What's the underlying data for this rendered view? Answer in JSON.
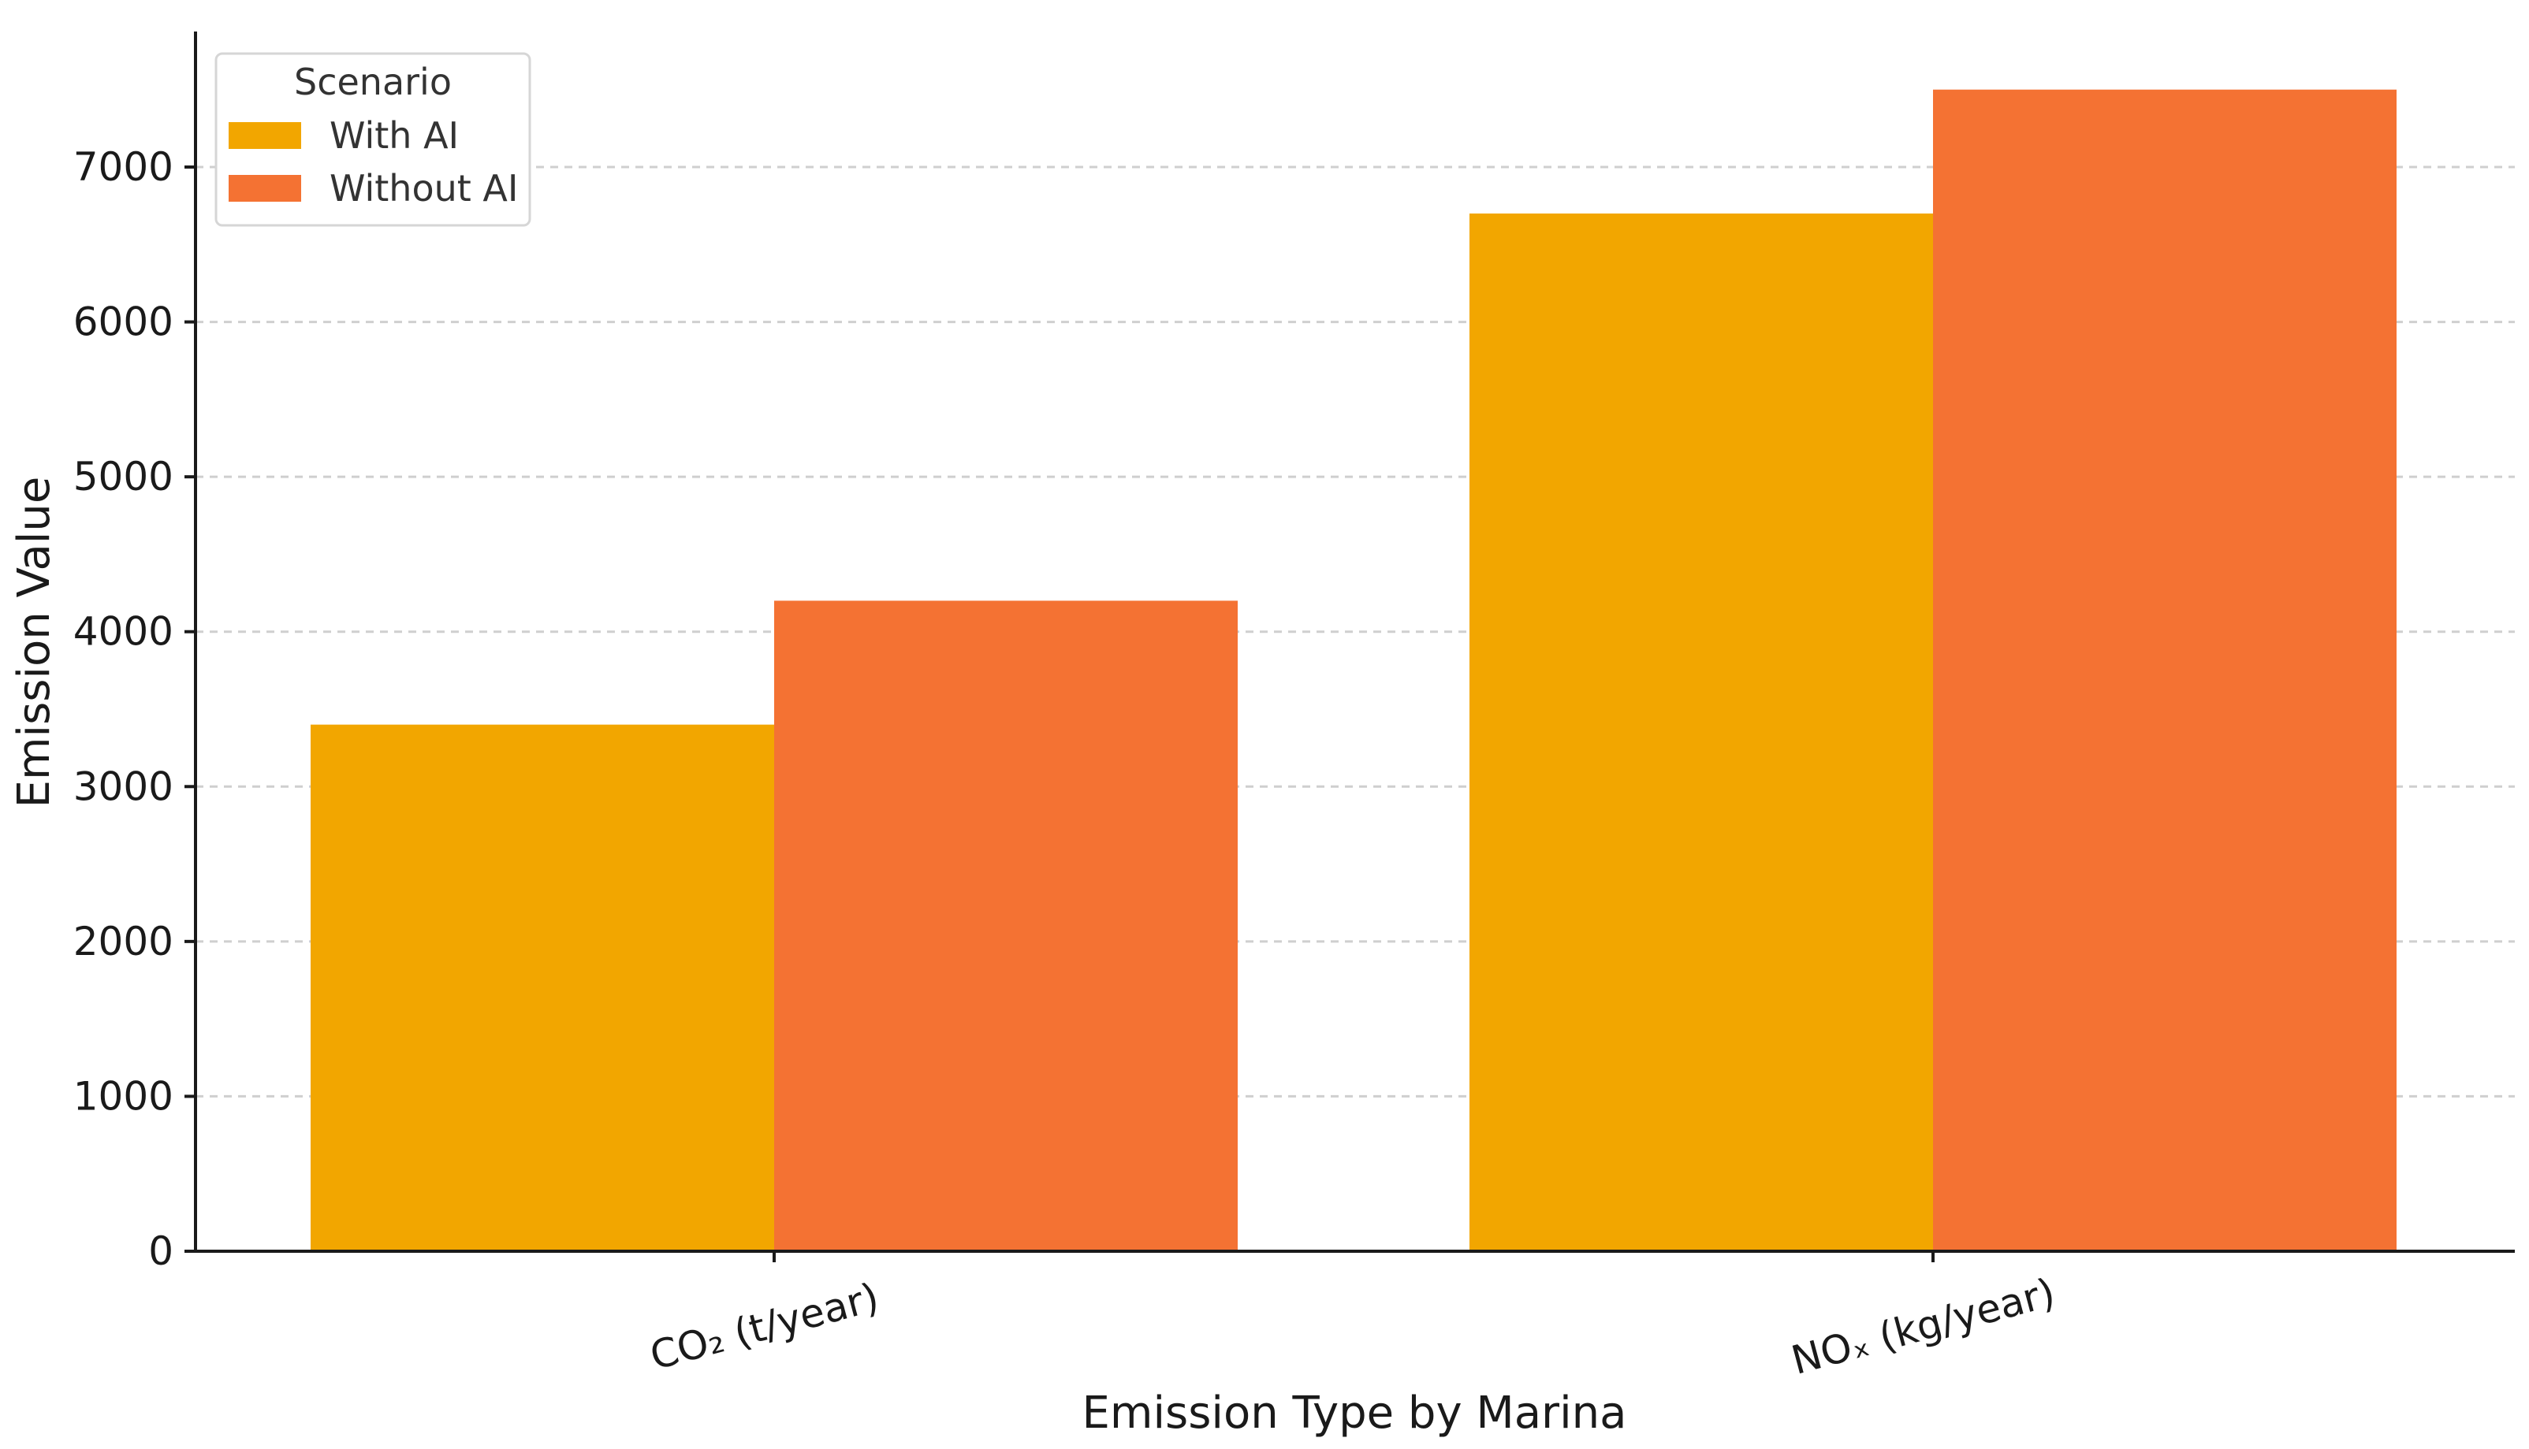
{
  "colors": {
    "with_ai": "#F2A600",
    "without_ai": "#F47233",
    "grid": "#cfcfcf",
    "axis": "#1a1a1a"
  },
  "chart_data": {
    "type": "bar",
    "title": "",
    "xlabel": "Emission Type by Marina",
    "ylabel": "Emission Value",
    "categories": [
      "CO₂ (t/year)",
      "NOₓ (kg/year)"
    ],
    "series": [
      {
        "name": "With AI",
        "values": [
          3400,
          6700
        ]
      },
      {
        "name": "Without AI",
        "values": [
          4200,
          7500
        ]
      }
    ],
    "ylim": [
      0,
      7875
    ],
    "yticks": [
      0,
      1000,
      2000,
      3000,
      4000,
      5000,
      6000,
      7000
    ],
    "grid": true,
    "legend": {
      "title": "Scenario",
      "placement": "top-left"
    }
  }
}
